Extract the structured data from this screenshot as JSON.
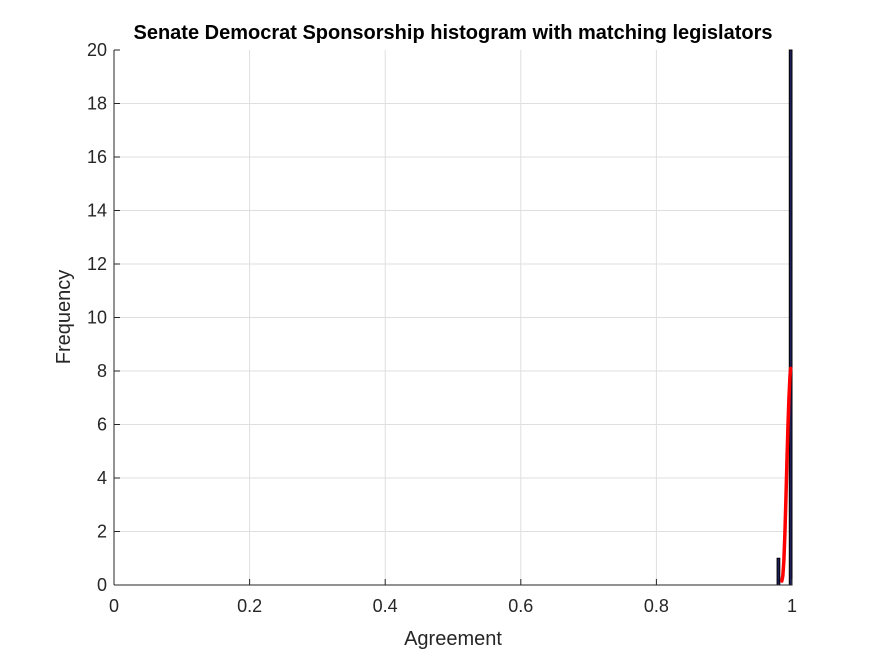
{
  "chart_data": {
    "type": "bar",
    "title": "Senate Democrat Sponsorship histogram with matching legislators",
    "xlabel": "Agreement",
    "ylabel": "Frequency",
    "xlim": [
      0,
      1
    ],
    "ylim": [
      0,
      20
    ],
    "xticks": [
      0,
      0.2,
      0.4,
      0.6,
      0.8,
      1
    ],
    "xtick_labels": [
      "0",
      "0.2",
      "0.4",
      "0.6",
      "0.8",
      "1"
    ],
    "yticks": [
      0,
      2,
      4,
      6,
      8,
      10,
      12,
      14,
      16,
      18,
      20
    ],
    "ytick_labels": [
      "0",
      "2",
      "4",
      "6",
      "8",
      "10",
      "12",
      "14",
      "16",
      "18",
      "20"
    ],
    "grid": true,
    "bins": [
      {
        "x0": 0.978,
        "x1": 0.982,
        "count": 1
      },
      {
        "x0": 0.996,
        "x1": 1.0,
        "count": 20
      }
    ],
    "fit_curve": {
      "color": "#ff0000",
      "x": [
        0.985,
        0.9865,
        0.988,
        0.9895,
        0.991,
        0.9925,
        0.994,
        0.9955,
        0.997,
        0.998
      ],
      "y": [
        0.15,
        0.35,
        0.9,
        1.9,
        3.2,
        4.6,
        5.9,
        7.0,
        7.8,
        8.1
      ]
    },
    "bar_color": "#1f1f5c",
    "bar_edge_color": "#000000"
  }
}
